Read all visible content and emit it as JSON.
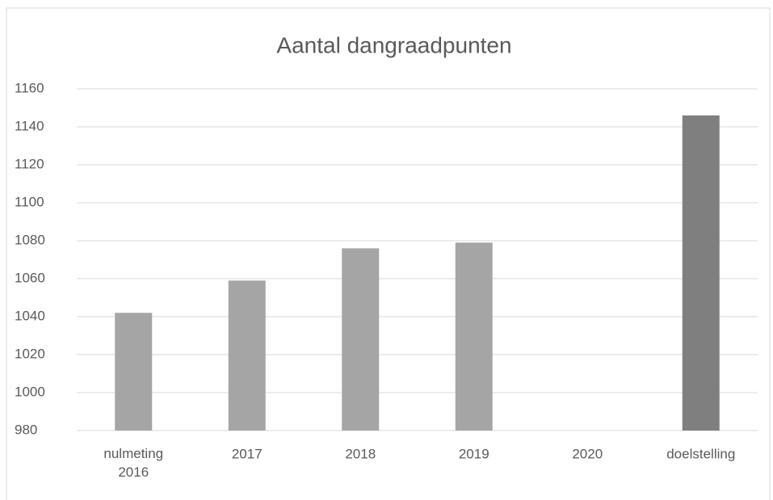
{
  "chart_data": {
    "type": "bar",
    "title": "Aantal dangraadpunten",
    "categories": [
      "nulmeting 2016",
      "2017",
      "2018",
      "2019",
      "2020",
      "doelstelling"
    ],
    "values": [
      1042,
      1059,
      1076,
      1079,
      null,
      1146
    ],
    "colors": [
      "#a5a5a5",
      "#a5a5a5",
      "#a5a5a5",
      "#a5a5a5",
      null,
      "#7f7f7f"
    ],
    "ylim": [
      980,
      1160
    ],
    "yticks": [
      980,
      1000,
      1020,
      1040,
      1060,
      1080,
      1100,
      1120,
      1140,
      1160
    ],
    "grid": true
  }
}
